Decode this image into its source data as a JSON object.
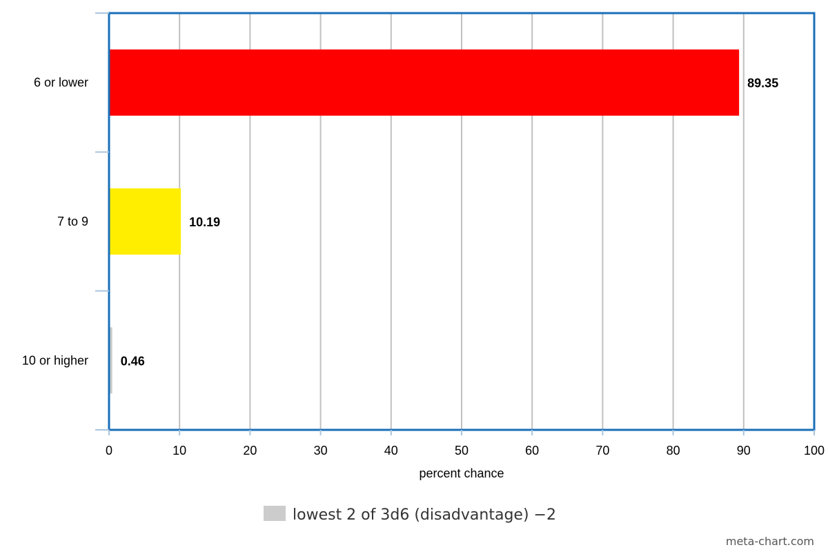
{
  "chart_data": {
    "type": "bar",
    "orientation": "horizontal",
    "categories": [
      "6 or lower",
      "7 to 9",
      "10 or higher"
    ],
    "values": [
      89.35,
      10.19,
      0.46
    ],
    "data_labels": [
      "89.35",
      "10.19",
      "0.46"
    ],
    "bar_colors": [
      "#ff0000",
      "#ffee00",
      "#cccccc"
    ],
    "xlabel": "percent chance",
    "ylabel": "",
    "xlim": [
      0,
      100
    ],
    "x_ticks": [
      "0",
      "10",
      "20",
      "30",
      "40",
      "50",
      "60",
      "70",
      "80",
      "90",
      "100"
    ],
    "grid": true,
    "legend_position": "bottom",
    "legend": [
      {
        "name": "lowest 2 of 3d6 (disadvantage) −2",
        "color": "#cccccc"
      }
    ],
    "plot_border_color": "#1a6fb8",
    "grid_color": "#c0c0c0"
  },
  "credit": "meta-chart.com"
}
